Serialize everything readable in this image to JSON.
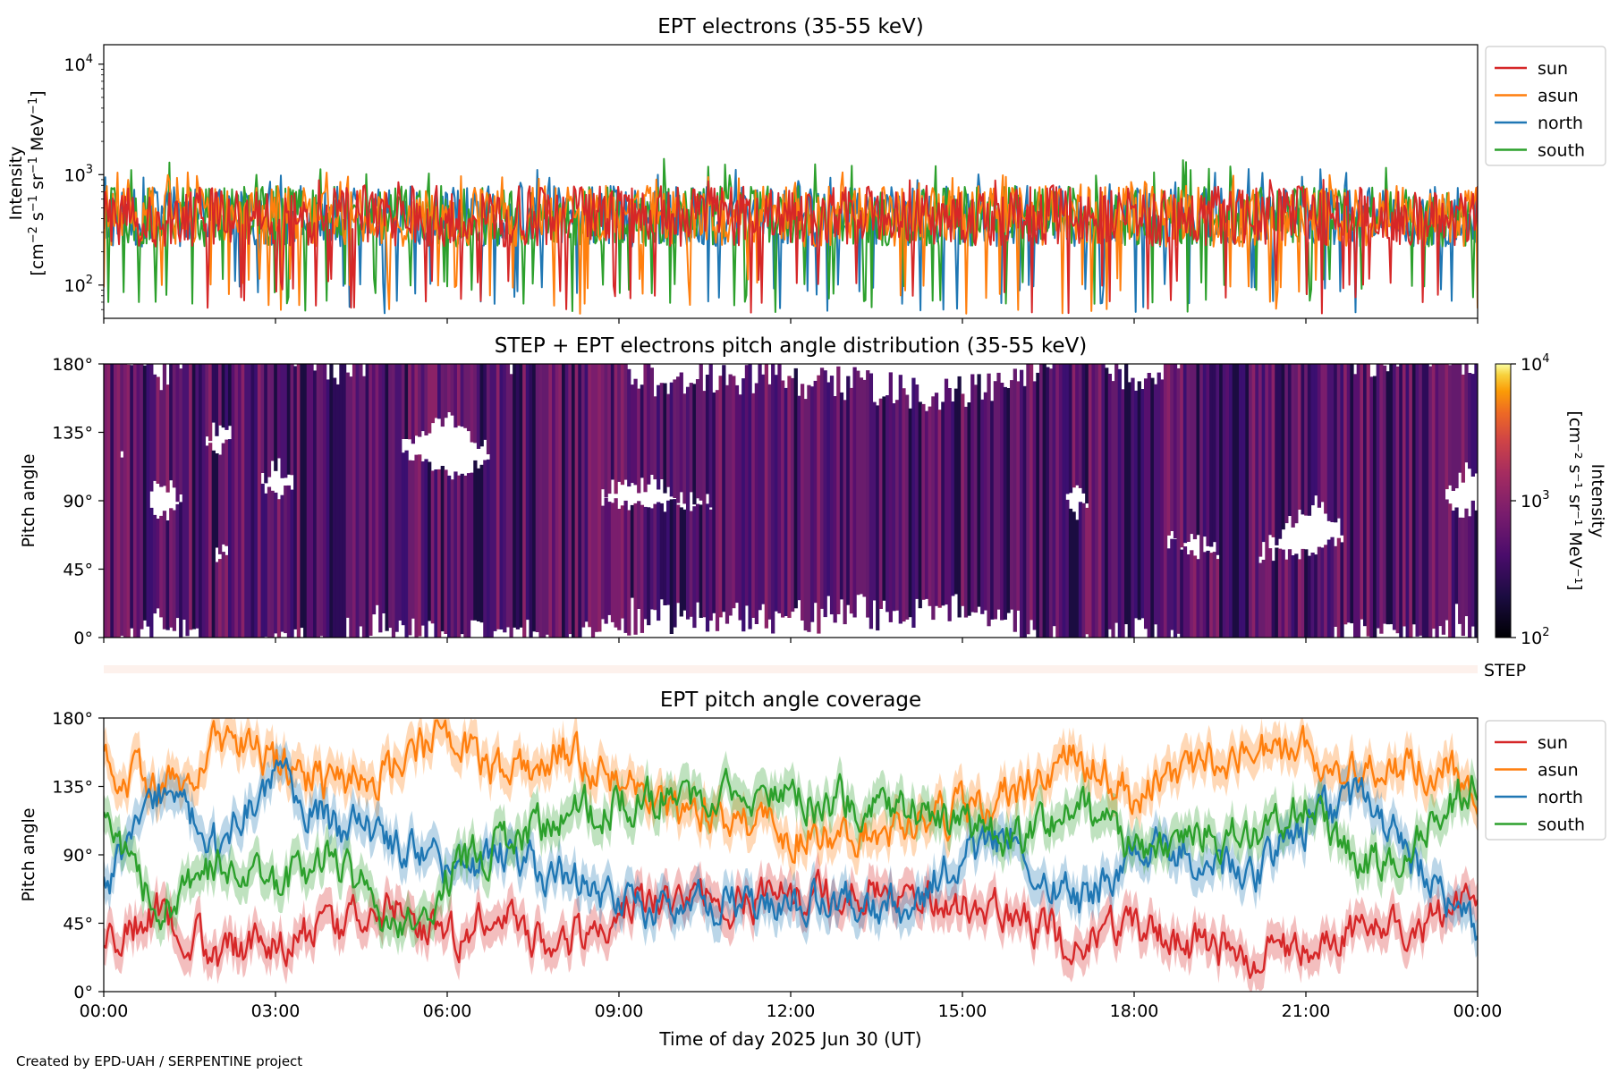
{
  "footer": "Created by EPD-UAH / SERPENTINE project",
  "chart_data": [
    {
      "type": "line",
      "title": "EPT electrons (35-55 keV)",
      "ylabel_line1": "Intensity",
      "ylabel_line2_base": "[cm",
      "ylabel_scale": "log",
      "ylim": [
        50,
        15000
      ],
      "yticks": [
        {
          "base": "10",
          "exp": "2",
          "value": 100
        },
        {
          "base": "10",
          "exp": "3",
          "value": 1000
        },
        {
          "base": "10",
          "exp": "4",
          "value": 10000
        }
      ],
      "xlim_hours": [
        0,
        24
      ],
      "legend": [
        "sun",
        "asun",
        "north",
        "south"
      ],
      "legend_position": "right",
      "series": [
        {
          "name": "north",
          "color": "#1f77b4",
          "typical": 420,
          "range": [
            55,
            1150
          ]
        },
        {
          "name": "south",
          "color": "#2ca02c",
          "typical": 420,
          "range": [
            55,
            1400
          ]
        },
        {
          "name": "asun",
          "color": "#ff7f0e",
          "typical": 420,
          "range": [
            55,
            1050
          ]
        },
        {
          "name": "sun",
          "color": "#d62728",
          "typical": 420,
          "range": [
            55,
            900
          ]
        }
      ]
    },
    {
      "type": "heatmap",
      "title": "STEP + EPT electrons pitch angle distribution (35-55 keV)",
      "ylabel": "Pitch angle",
      "yticks": [
        "0°",
        "45°",
        "90°",
        "135°",
        "180°"
      ],
      "ylim": [
        0,
        180
      ],
      "colorbar": {
        "label": "Intensity",
        "units": "[cm⁻² s⁻¹ sr⁻¹ MeV⁻¹]",
        "scale": "log",
        "range": [
          100,
          10000
        ],
        "ticks": [
          {
            "base": "10",
            "exp": "2"
          },
          {
            "base": "10",
            "exp": "3"
          },
          {
            "base": "10",
            "exp": "4"
          }
        ]
      },
      "step_label": "STEP"
    },
    {
      "type": "line",
      "title": "EPT pitch angle coverage",
      "ylabel": "Pitch angle",
      "xlabel": "Time of day 2025 Jun 30 (UT)",
      "ylim": [
        0,
        180
      ],
      "yticks": [
        "0°",
        "45°",
        "90°",
        "135°",
        "180°"
      ],
      "xticks": [
        "00:00",
        "03:00",
        "06:00",
        "09:00",
        "12:00",
        "15:00",
        "18:00",
        "21:00",
        "00:00"
      ],
      "legend": [
        "sun",
        "asun",
        "north",
        "south"
      ],
      "legend_position": "right",
      "series": [
        {
          "name": "sun",
          "color": "#d62728",
          "x": [
            0,
            1,
            2,
            3,
            4,
            5,
            6,
            7,
            8,
            9,
            10,
            11,
            12,
            13,
            14,
            15,
            16,
            17,
            18,
            19,
            20,
            21,
            22,
            23,
            24
          ],
          "y": [
            30,
            55,
            25,
            35,
            40,
            55,
            35,
            50,
            30,
            55,
            60,
            55,
            60,
            65,
            70,
            60,
            50,
            30,
            45,
            30,
            25,
            30,
            45,
            40,
            60
          ]
        },
        {
          "name": "asun",
          "color": "#ff7f0e",
          "x": [
            0,
            1,
            2,
            3,
            4,
            5,
            6,
            7,
            8,
            9,
            10,
            11,
            12,
            13,
            14,
            15,
            16,
            17,
            18,
            19,
            20,
            21,
            22,
            23,
            24
          ],
          "y": [
            155,
            130,
            165,
            150,
            135,
            145,
            170,
            140,
            160,
            140,
            120,
            110,
            105,
            95,
            110,
            120,
            130,
            160,
            125,
            150,
            155,
            160,
            140,
            150,
            135
          ]
        },
        {
          "name": "north",
          "color": "#1f77b4",
          "x": [
            0,
            1,
            2,
            3,
            4,
            5,
            6,
            7,
            8,
            9,
            10,
            11,
            12,
            13,
            14,
            15,
            16,
            17,
            18,
            19,
            20,
            21,
            22,
            23,
            24
          ],
          "y": [
            70,
            130,
            95,
            140,
            110,
            100,
            80,
            90,
            75,
            60,
            55,
            60,
            55,
            60,
            55,
            90,
            100,
            55,
            95,
            90,
            75,
            110,
            130,
            80,
            40
          ]
        },
        {
          "name": "south",
          "color": "#2ca02c",
          "x": [
            0,
            1,
            2,
            3,
            4,
            5,
            6,
            7,
            8,
            9,
            10,
            11,
            12,
            13,
            14,
            15,
            16,
            17,
            18,
            19,
            20,
            21,
            22,
            23,
            24
          ],
          "y": [
            110,
            50,
            85,
            65,
            95,
            40,
            75,
            100,
            115,
            125,
            130,
            130,
            125,
            125,
            120,
            110,
            100,
            125,
            90,
            105,
            100,
            125,
            80,
            100,
            145
          ]
        }
      ]
    }
  ]
}
